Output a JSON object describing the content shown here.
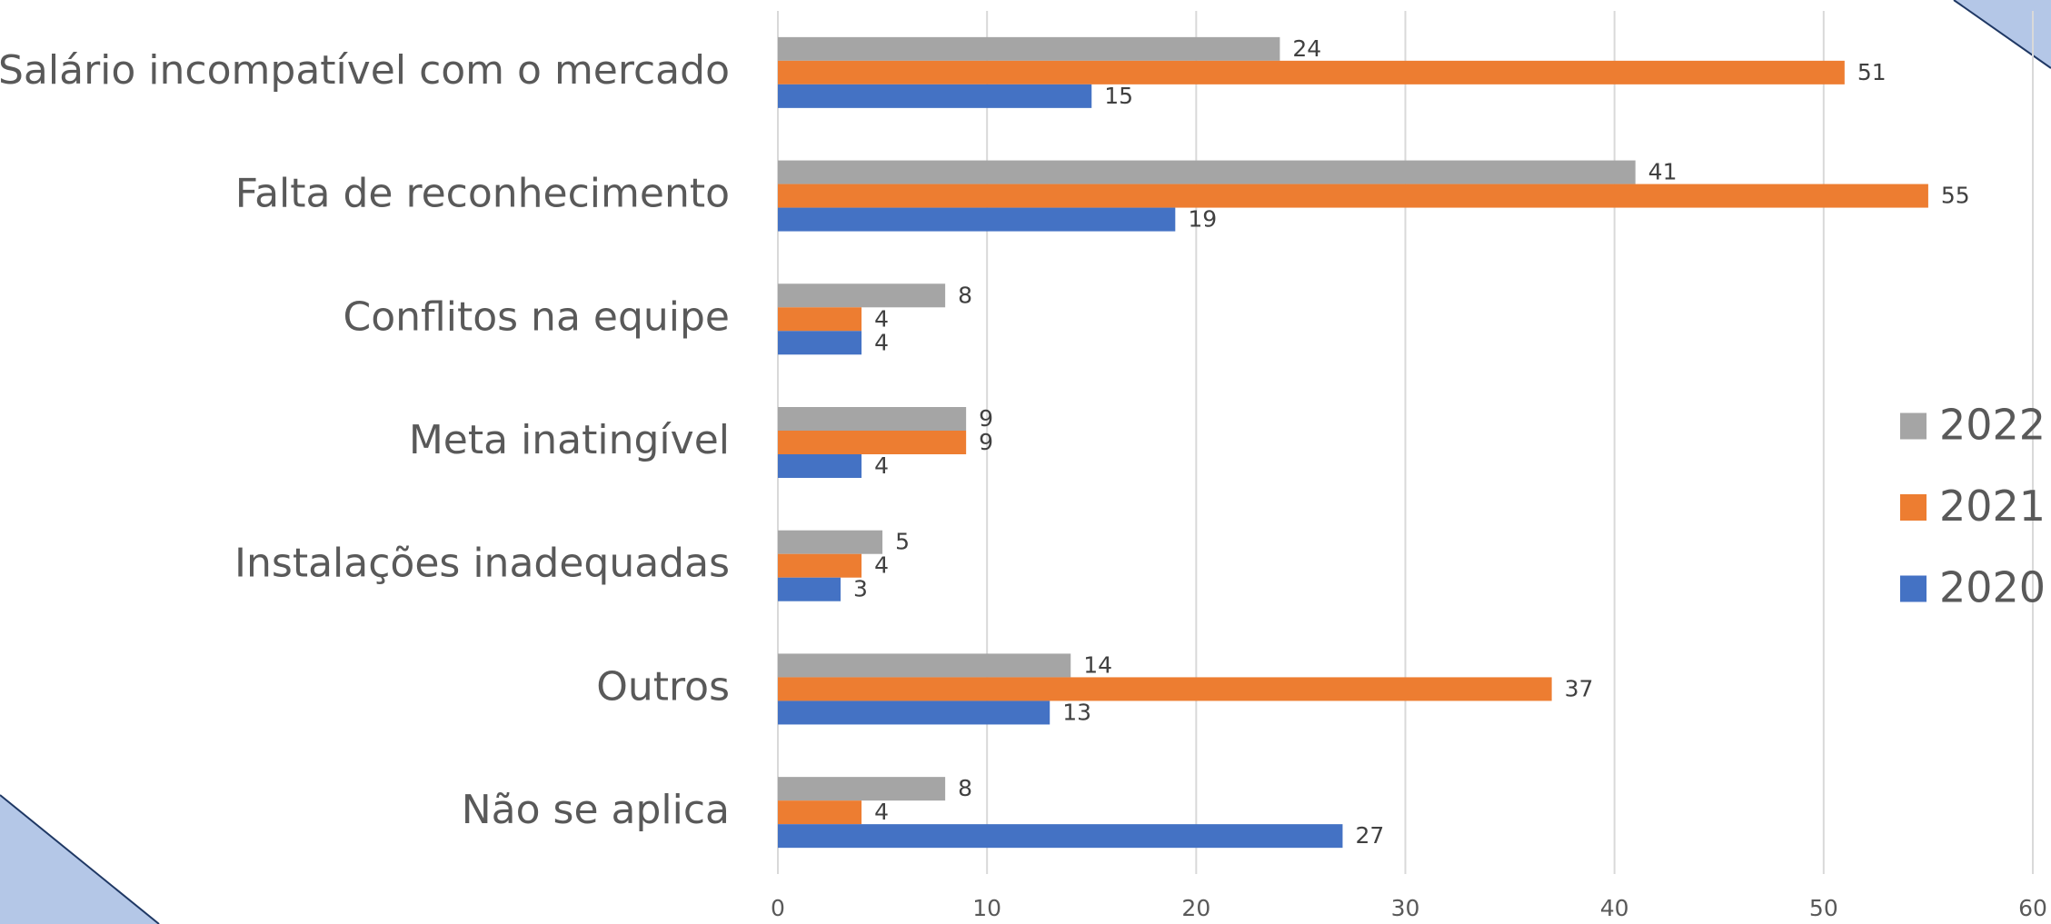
{
  "chart_data": {
    "type": "barh",
    "categories": [
      "Salário incompatível com o mercado",
      "Falta de reconhecimento",
      "Conflitos na equipe",
      "Meta inatingível",
      "Instalações inadequadas",
      "Outros",
      "Não se aplica"
    ],
    "series": [
      {
        "name": "2022",
        "color": "#a5a5a5",
        "values": [
          24,
          41,
          8,
          9,
          5,
          14,
          8
        ]
      },
      {
        "name": "2021",
        "color": "#ed7d31",
        "values": [
          51,
          55,
          4,
          9,
          4,
          37,
          4
        ]
      },
      {
        "name": "2020",
        "color": "#4472c4",
        "values": [
          15,
          19,
          4,
          4,
          3,
          13,
          27
        ]
      }
    ],
    "xlim": [
      0,
      60
    ],
    "xticks": [
      0,
      10,
      20,
      30,
      40,
      50,
      60
    ],
    "grid": true,
    "legend": "right"
  }
}
